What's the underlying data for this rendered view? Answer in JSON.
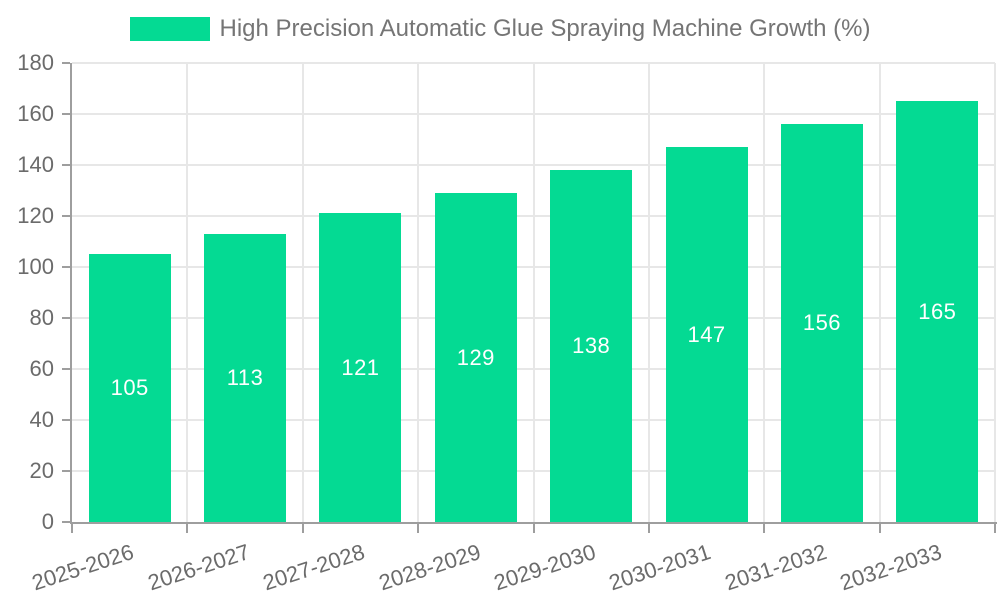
{
  "chart_data": {
    "type": "bar",
    "title": "High Precision Automatic Glue Spraying Machine Growth (%)",
    "categories": [
      "2025-2026",
      "2026-2027",
      "2027-2028",
      "2028-2029",
      "2029-2030",
      "2030-2031",
      "2031-2032",
      "2032-2033"
    ],
    "values": [
      105,
      113,
      121,
      129,
      138,
      147,
      156,
      165
    ],
    "bar_value_labels": [
      "105",
      "113",
      "121",
      "129",
      "138",
      "147",
      "156",
      "165"
    ],
    "xlabel": "",
    "ylabel": "",
    "ylim": [
      0,
      180
    ],
    "yticks": [
      0,
      20,
      40,
      60,
      80,
      100,
      120,
      140,
      160,
      180
    ],
    "grid": true,
    "legend_position": "top-center",
    "colors": {
      "bar": "#04da93",
      "bar_label": "#ffffff",
      "axis_text": "#6b6b6b",
      "legend_text": "#757575",
      "gridline": "#e7e7e7",
      "axis_line": "#9e9e9e",
      "background": "#ffffff"
    }
  }
}
